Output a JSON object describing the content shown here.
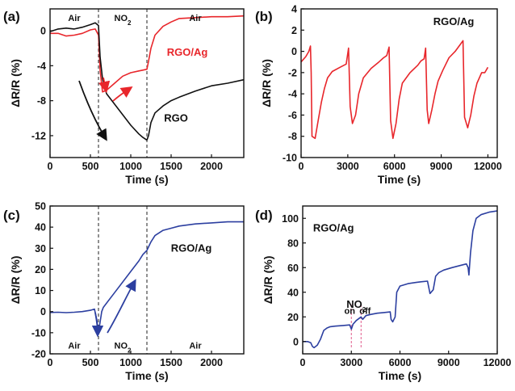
{
  "chart_data": [
    {
      "id": "a",
      "type": "line",
      "panel_label": "(a)",
      "xlabel": "Time (s)",
      "ylabel": "ΔR/R (%)",
      "xlim": [
        0,
        2400
      ],
      "ylim": [
        -14.5,
        2.5
      ],
      "xticks": [
        0,
        500,
        1000,
        1500,
        2000
      ],
      "yticks": [
        0,
        -4,
        -8,
        -12
      ],
      "phase_lines": [
        600,
        1200
      ],
      "phases": [
        {
          "text": "Air",
          "x": 300,
          "y": 1.5
        },
        {
          "text": "NO2",
          "x": 900,
          "y": 1.5,
          "sub": "2"
        },
        {
          "text": "Air",
          "x": 1800,
          "y": 1.5
        }
      ],
      "series": [
        {
          "name": "RGO/Ag",
          "color": "#e8262b",
          "x": [
            0,
            100,
            200,
            300,
            400,
            500,
            560,
            600,
            620,
            650,
            700,
            800,
            900,
            1000,
            1100,
            1150,
            1200,
            1220,
            1250,
            1300,
            1400,
            1500,
            1600,
            1800,
            2000,
            2200,
            2400
          ],
          "y": [
            -0.3,
            -0.3,
            -0.6,
            -0.5,
            -0.3,
            0.1,
            0.2,
            -0.5,
            -4.5,
            -7.0,
            -6.8,
            -6.0,
            -5.2,
            -4.8,
            -4.6,
            -4.5,
            -4.4,
            -3.5,
            -2.0,
            -0.5,
            0.5,
            1.0,
            1.4,
            1.5,
            1.6,
            1.6,
            1.7
          ]
        },
        {
          "name": "RGO",
          "color": "#111111",
          "x": [
            0,
            100,
            200,
            300,
            400,
            500,
            560,
            600,
            620,
            650,
            700,
            800,
            900,
            1000,
            1100,
            1150,
            1200,
            1220,
            1250,
            1300,
            1400,
            1500,
            1600,
            1800,
            2000,
            2200,
            2400
          ],
          "y": [
            -0.1,
            0.2,
            0.3,
            0.2,
            0.4,
            0.7,
            0.9,
            0.6,
            -3.0,
            -5.5,
            -7.2,
            -8.4,
            -9.6,
            -10.8,
            -11.8,
            -12.2,
            -12.5,
            -12.0,
            -10.5,
            -9.4,
            -8.6,
            -8.0,
            -7.6,
            -6.9,
            -6.3,
            -6.0,
            -5.6
          ]
        }
      ],
      "labels": [
        {
          "text": "RGO/Ag",
          "x": 1700,
          "y": -2.5,
          "color": "#e8262b"
        },
        {
          "text": "RGO",
          "x": 1560,
          "y": -10.0,
          "color": "#111111"
        }
      ]
    },
    {
      "id": "b",
      "type": "line",
      "panel_label": "(b)",
      "xlabel": "Time (s)",
      "ylabel": "ΔR/R (%)",
      "xlim": [
        0,
        12600
      ],
      "ylim": [
        -10,
        4
      ],
      "xticks": [
        0,
        3000,
        6000,
        9000,
        12000
      ],
      "yticks": [
        4,
        2,
        0,
        -2,
        -4,
        -6,
        -8,
        -10
      ],
      "series": [
        {
          "name": "RGO/Ag",
          "color": "#e8262b",
          "x": [
            0,
            300,
            500,
            600,
            650,
            700,
            900,
            1100,
            1300,
            1500,
            1700,
            2000,
            2500,
            2900,
            3050,
            3150,
            3300,
            3500,
            3700,
            4000,
            4500,
            5000,
            5300,
            5500,
            5650,
            5750,
            5900,
            6100,
            6300,
            6500,
            7000,
            7500,
            7700,
            7900,
            8000,
            8100,
            8200,
            8400,
            8600,
            8800,
            9100,
            9500,
            9900,
            10300,
            10400,
            10500,
            10700,
            10900,
            11100,
            11300,
            11600,
            11800,
            12000
          ],
          "y": [
            -1.0,
            -0.5,
            0.0,
            0.5,
            -2.0,
            -8.0,
            -8.2,
            -6.5,
            -4.8,
            -3.5,
            -2.5,
            -1.9,
            -1.5,
            -1.2,
            0.3,
            -5.2,
            -6.8,
            -6.0,
            -4.0,
            -2.5,
            -1.6,
            -1.0,
            -0.6,
            -0.4,
            0.4,
            -6.5,
            -8.2,
            -6.8,
            -4.5,
            -3.0,
            -2.0,
            -1.3,
            -0.9,
            -0.7,
            0.3,
            -5.5,
            -6.8,
            -5.5,
            -4.0,
            -2.8,
            -1.8,
            -0.6,
            0.0,
            0.8,
            1.0,
            -6.2,
            -7.2,
            -6.0,
            -4.2,
            -3.0,
            -2.0,
            -2.0,
            -1.5
          ]
        }
      ],
      "labels": [
        {
          "text": "RGO/Ag",
          "x": 9800,
          "y": 2.8,
          "color": "#111111"
        }
      ]
    },
    {
      "id": "c",
      "type": "line",
      "panel_label": "(c)",
      "xlabel": "Time (s)",
      "ylabel": "ΔR/R (%)",
      "xlim": [
        0,
        2400
      ],
      "ylim": [
        -20,
        50
      ],
      "xticks": [
        0,
        500,
        1000,
        1500,
        2000
      ],
      "yticks": [
        50,
        40,
        30,
        20,
        10,
        0,
        -10,
        -20
      ],
      "phase_lines": [
        600,
        1200
      ],
      "phases": [
        {
          "text": "Air",
          "x": 300,
          "y": -16
        },
        {
          "text": "NO2",
          "x": 900,
          "y": -16,
          "sub": "2"
        },
        {
          "text": "Air",
          "x": 1800,
          "y": -16
        }
      ],
      "series": [
        {
          "name": "RGO/Ag",
          "color": "#2c3fa0",
          "x": [
            0,
            100,
            200,
            300,
            400,
            500,
            550,
            580,
            600,
            620,
            640,
            660,
            700,
            800,
            900,
            1000,
            1100,
            1150,
            1200,
            1250,
            1300,
            1400,
            1500,
            1600,
            1800,
            2000,
            2200,
            2400
          ],
          "y": [
            -0.4,
            -0.3,
            -0.5,
            -0.3,
            0.0,
            0.6,
            1.2,
            -4.0,
            -10.0,
            -5.0,
            0.0,
            2.0,
            4.0,
            9.0,
            14.0,
            19.0,
            24.0,
            27.0,
            29.0,
            33.0,
            36.0,
            38.5,
            39.5,
            40.5,
            41.5,
            42.0,
            42.5,
            42.5
          ]
        }
      ],
      "labels": [
        {
          "text": "RGO/Ag",
          "x": 1750,
          "y": 30,
          "color": "#111111"
        }
      ]
    },
    {
      "id": "d",
      "type": "line",
      "panel_label": "(d)",
      "xlabel": "Time (s)",
      "ylabel": "ΔR/R (%)",
      "xlim": [
        0,
        12000
      ],
      "ylim": [
        -10,
        110
      ],
      "xticks": [
        0,
        3000,
        6000,
        9000,
        12000
      ],
      "yticks": [
        100,
        80,
        60,
        40,
        20,
        0
      ],
      "event_lines": [
        3000,
        3600
      ],
      "events": [
        {
          "text": "on",
          "x": 2900,
          "y": 25
        },
        {
          "text": "off",
          "x": 3850,
          "y": 25
        }
      ],
      "series": [
        {
          "name": "RGO/Ag",
          "color": "#2c3fa0",
          "x": [
            0,
            300,
            500,
            600,
            700,
            900,
            1100,
            1300,
            1500,
            1700,
            2000,
            2500,
            2900,
            3000,
            3100,
            3300,
            3500,
            3600,
            3700,
            3900,
            4200,
            4600,
            5000,
            5400,
            5450,
            5550,
            5700,
            5800,
            6000,
            6500,
            7000,
            7300,
            7700,
            7850,
            8050,
            8200,
            8400,
            8700,
            9200,
            9800,
            10100,
            10200,
            10250,
            10350,
            10500,
            10700,
            11000,
            11500,
            12000
          ],
          "y": [
            0,
            0,
            -1,
            -4,
            -5,
            -3,
            2,
            9,
            11,
            12,
            12.5,
            13,
            13.5,
            10,
            14,
            17,
            19,
            20,
            18,
            21,
            22,
            23,
            23.5,
            24,
            18,
            16,
            20,
            40,
            45,
            47,
            48,
            48.5,
            49,
            39,
            42,
            53,
            56,
            58,
            60,
            62,
            63,
            60,
            54,
            72,
            90,
            100,
            103,
            105,
            106
          ]
        }
      ],
      "labels": [
        {
          "text": "RGO/Ag",
          "x": 1900,
          "y": 92,
          "color": "#111111"
        },
        {
          "text": "NO3",
          "x": 3300,
          "y": 30,
          "color": "#111111",
          "sub": "2"
        }
      ]
    }
  ]
}
